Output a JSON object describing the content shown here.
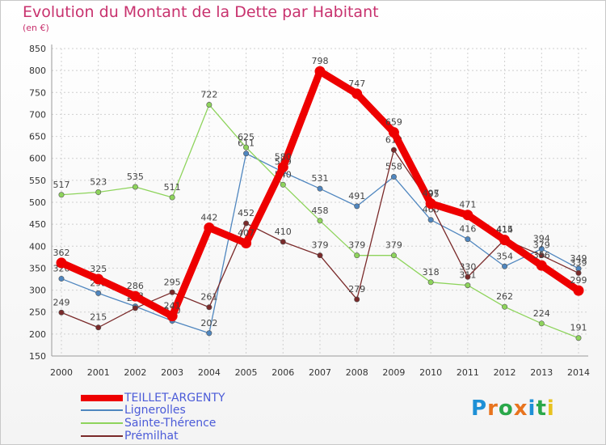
{
  "title": "Evolution du Montant de la Dette par Habitant",
  "subtitle": "(en €)",
  "logo": {
    "text": "Proxiti",
    "letter_colors": [
      "#1e90d6",
      "#e8741e",
      "#2aa84a",
      "#e8741e",
      "#1e90d6",
      "#2aa84a",
      "#e8c21e"
    ]
  },
  "chart_data": {
    "type": "line",
    "x": [
      "2000",
      "2001",
      "2002",
      "2003",
      "2004",
      "2005",
      "2006",
      "2007",
      "2008",
      "2009",
      "2010",
      "2011",
      "2012",
      "2013",
      "2014"
    ],
    "ylim": [
      150,
      850
    ],
    "yticks": [
      150,
      200,
      250,
      300,
      350,
      400,
      450,
      500,
      550,
      600,
      650,
      700,
      750,
      800,
      850
    ],
    "grid": true,
    "legend_position": "bottom-left",
    "series": [
      {
        "name": "Lignerolles",
        "color": "#4f86bf",
        "values": [
          326,
          293,
          263,
          230,
          202,
          611,
          569,
          531,
          491,
          558,
          460,
          416,
          354,
          394,
          349
        ]
      },
      {
        "name": "Sainte-Thérence",
        "color": "#8ed45c",
        "values": [
          517,
          523,
          535,
          511,
          722,
          625,
          540,
          458,
          379,
          379,
          318,
          311,
          262,
          224,
          191
        ]
      },
      {
        "name": "Prémilhat",
        "color": "#7a2a2a",
        "values": [
          249,
          215,
          259,
          295,
          261,
          452,
          410,
          379,
          279,
          619,
          495,
          330,
          415,
          379,
          339
        ]
      },
      {
        "name": "TEILLET-ARGENTY",
        "color": "#ee0000",
        "values": [
          362,
          325,
          286,
          241,
          442,
          407,
          580,
          798,
          747,
          659,
          497,
          471,
          414,
          356,
          299
        ]
      }
    ]
  }
}
